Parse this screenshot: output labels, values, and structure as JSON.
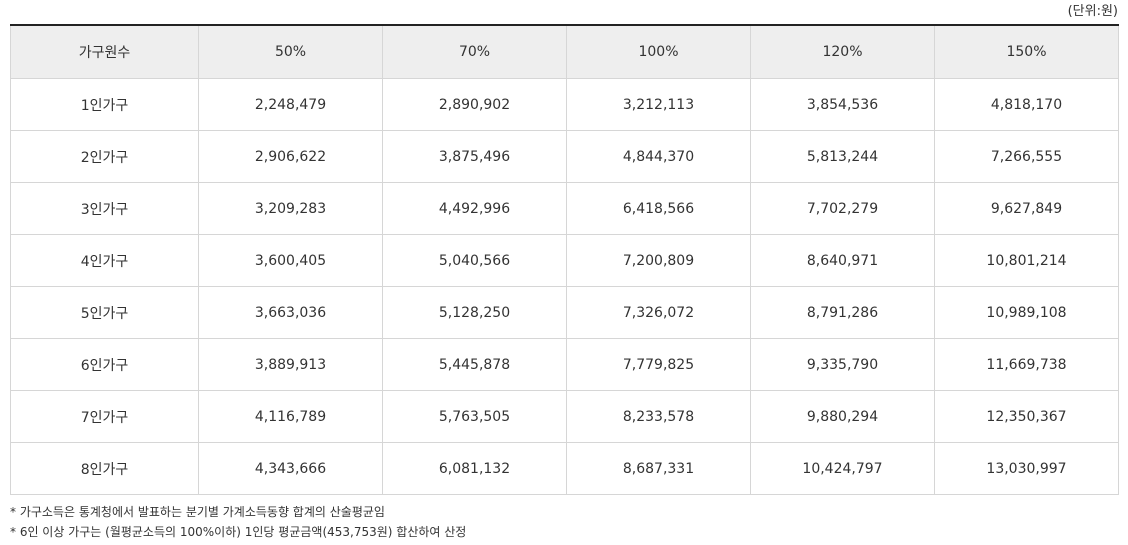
{
  "unit_label": "(단위:원)",
  "table": {
    "headers": [
      "가구원수",
      "50%",
      "70%",
      "100%",
      "120%",
      "150%"
    ],
    "rows": [
      {
        "label": "1인가구",
        "values": [
          "2,248,479",
          "2,890,902",
          "3,212,113",
          "3,854,536",
          "4,818,170"
        ]
      },
      {
        "label": "2인가구",
        "values": [
          "2,906,622",
          "3,875,496",
          "4,844,370",
          "5,813,244",
          "7,266,555"
        ]
      },
      {
        "label": "3인가구",
        "values": [
          "3,209,283",
          "4,492,996",
          "6,418,566",
          "7,702,279",
          "9,627,849"
        ]
      },
      {
        "label": "4인가구",
        "values": [
          "3,600,405",
          "5,040,566",
          "7,200,809",
          "8,640,971",
          "10,801,214"
        ]
      },
      {
        "label": "5인가구",
        "values": [
          "3,663,036",
          "5,128,250",
          "7,326,072",
          "8,791,286",
          "10,989,108"
        ]
      },
      {
        "label": "6인가구",
        "values": [
          "3,889,913",
          "5,445,878",
          "7,779,825",
          "9,335,790",
          "11,669,738"
        ]
      },
      {
        "label": "7인가구",
        "values": [
          "4,116,789",
          "5,763,505",
          "8,233,578",
          "9,880,294",
          "12,350,367"
        ]
      },
      {
        "label": "8인가구",
        "values": [
          "4,343,666",
          "6,081,132",
          "8,687,331",
          "10,424,797",
          "13,030,997"
        ]
      }
    ]
  },
  "notes": [
    "* 가구소득은 통계청에서 발표하는 분기별 가계소득동향 합계의 산술평균임",
    "* 6인 이상 가구는 (월평균소득의 100%이하) 1인당 평균금액(453,753원) 합산하여 산정"
  ]
}
